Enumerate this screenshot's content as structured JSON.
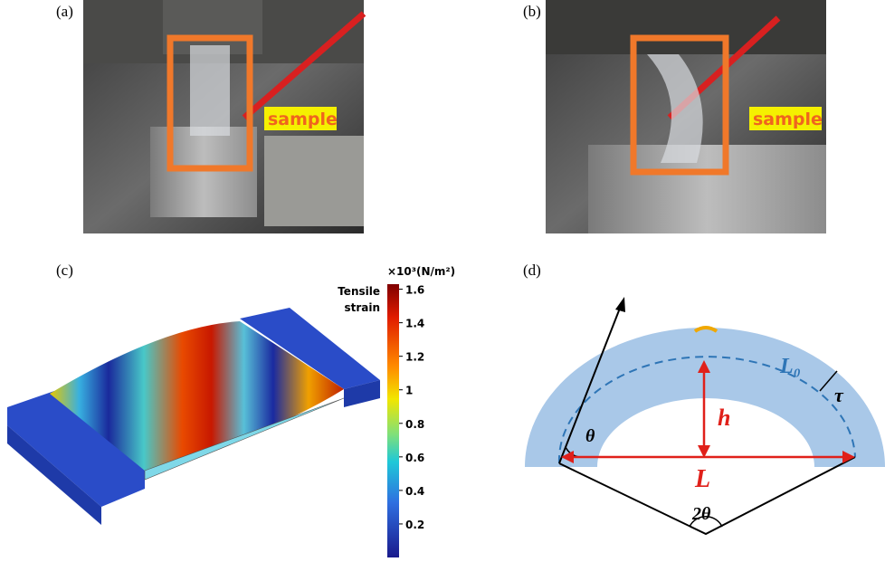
{
  "panels": [
    {
      "label": "(a)",
      "tag": "sample"
    },
    {
      "label": "(b)",
      "tag": "sample"
    },
    {
      "label": "(c)",
      "colorbar": {
        "unit": "×10³(N/m²)",
        "title_lines": [
          "Tensile",
          "strain"
        ],
        "range": [
          0,
          1.63
        ],
        "ticks": [
          0.2,
          0.4,
          0.6,
          0.8,
          1,
          1.2,
          1.4,
          1.6
        ]
      }
    },
    {
      "label": "(d)",
      "symbols": {
        "arc_length": "L₀",
        "thickness": "τ",
        "height": "h",
        "chord": "L",
        "angle": "θ",
        "central_angle": "2θ"
      }
    }
  ]
}
